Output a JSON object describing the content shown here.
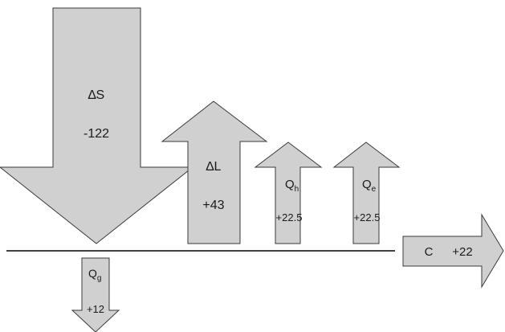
{
  "arrows": {
    "delta_s": {
      "symbol": "∆S",
      "value": "-122"
    },
    "delta_l": {
      "symbol": "∆L",
      "value": "+43"
    },
    "q_h": {
      "symbol": "Q",
      "subscript": "h",
      "value": "+22.5"
    },
    "q_e": {
      "symbol": "Q",
      "subscript": "e",
      "value": "+22.5"
    },
    "c": {
      "symbol": "C",
      "value": "+22"
    },
    "q_g": {
      "symbol": "Q",
      "subscript": "g",
      "value": "+12"
    }
  },
  "colors": {
    "arrow_fill": "#d0d0d0",
    "arrow_stroke": "#3a3a3a",
    "baseline": "#000000"
  }
}
